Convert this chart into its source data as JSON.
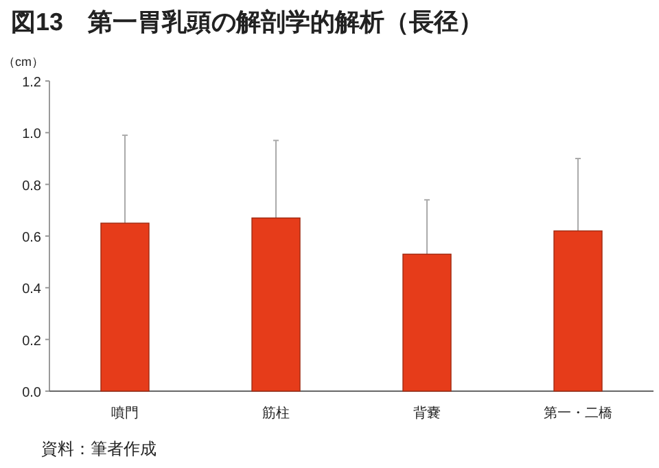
{
  "chart_data": {
    "type": "bar",
    "title": "図13　第一胃乳頭の解剖学的解析（長径）",
    "ylabel": "（cm）",
    "annotations": [
      "資料：筆者作成"
    ],
    "categories": [
      "噴門",
      "筋柱",
      "背嚢",
      "第一・二橋"
    ],
    "values": [
      0.65,
      0.67,
      0.53,
      0.62
    ],
    "errors": [
      [
        0.65,
        0.99
      ],
      [
        0.67,
        0.97
      ],
      [
        0.53,
        0.74
      ],
      [
        0.62,
        0.9
      ]
    ],
    "color": "#e63c1a",
    "ylim": [
      0,
      1.2
    ],
    "yticks": [
      {
        "value": 0,
        "label": "0.0"
      },
      0.2,
      0.4,
      0.6,
      0.8,
      {
        "value": 1,
        "label": "1.0"
      },
      1.2
    ],
    "grid": false
  }
}
